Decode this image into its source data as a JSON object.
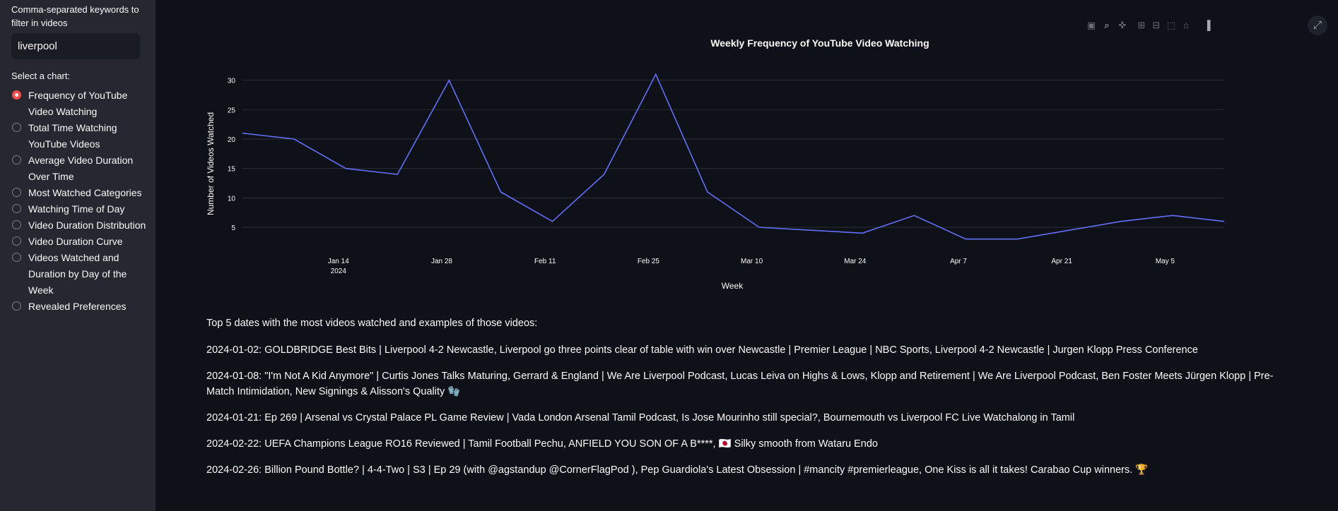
{
  "sidebar": {
    "keyword_label": "Comma-separated keywords to filter in videos",
    "keyword_value": "liverpool",
    "chart_label": "Select a chart:",
    "options": [
      {
        "label": "Frequency of YouTube Video Watching",
        "selected": true
      },
      {
        "label": "Total Time Watching YouTube Videos",
        "selected": false
      },
      {
        "label": "Average Video Duration Over Time",
        "selected": false
      },
      {
        "label": "Most Watched Categories",
        "selected": false
      },
      {
        "label": "Watching Time of Day",
        "selected": false
      },
      {
        "label": "Video Duration Distribution",
        "selected": false
      },
      {
        "label": "Video Duration Curve",
        "selected": false
      },
      {
        "label": "Videos Watched and Duration by Day of the Week",
        "selected": false
      },
      {
        "label": "Revealed Preferences",
        "selected": false
      }
    ]
  },
  "modebar": [
    "camera-icon",
    "zoom-icon",
    "pan-icon",
    "zoom-in-icon",
    "zoom-out-icon",
    "autoscale-icon",
    "reset-axes-icon",
    "plotly-logo-icon"
  ],
  "chart_data": {
    "type": "line",
    "title": "Weekly Frequency of YouTube Video Watching",
    "xlabel": "Week",
    "ylabel": "Number of Videos Watched",
    "x": [
      "2024-01-01",
      "2024-01-08",
      "2024-01-15",
      "2024-01-22",
      "2024-01-29",
      "2024-02-05",
      "2024-02-12",
      "2024-02-19",
      "2024-02-26",
      "2024-03-04",
      "2024-03-11",
      "2024-03-18",
      "2024-03-25",
      "2024-04-01",
      "2024-04-08",
      "2024-04-15",
      "2024-04-22",
      "2024-04-29",
      "2024-05-06",
      "2024-05-13"
    ],
    "values": [
      21,
      20,
      15,
      14,
      30,
      11,
      6,
      14,
      31,
      11,
      5,
      4.5,
      4,
      7,
      3,
      3,
      4.5,
      6,
      7,
      6
    ],
    "x_ticks": [
      {
        "date": "2024-01-14",
        "label": "Jan 14",
        "sub": "2024"
      },
      {
        "date": "2024-01-28",
        "label": "Jan 28",
        "sub": ""
      },
      {
        "date": "2024-02-11",
        "label": "Feb 11",
        "sub": ""
      },
      {
        "date": "2024-02-25",
        "label": "Feb 25",
        "sub": ""
      },
      {
        "date": "2024-03-10",
        "label": "Mar 10",
        "sub": ""
      },
      {
        "date": "2024-03-24",
        "label": "Mar 24",
        "sub": ""
      },
      {
        "date": "2024-04-07",
        "label": "Apr 7",
        "sub": ""
      },
      {
        "date": "2024-04-21",
        "label": "Apr 21",
        "sub": ""
      },
      {
        "date": "2024-05-05",
        "label": "May 5",
        "sub": ""
      }
    ],
    "y_ticks": [
      5,
      10,
      15,
      20,
      25,
      30
    ],
    "ylim": [
      2,
      32
    ],
    "xlim": [
      "2024-01-01",
      "2024-05-13"
    ],
    "line_color": "#636efa",
    "grid": true
  },
  "top5": {
    "heading": "Top 5 dates with the most videos watched and examples of those videos:",
    "items": [
      "2024-01-02: GOLDBRIDGE Best Bits | Liverpool 4-2 Newcastle, Liverpool go three points clear of table with win over Newcastle | Premier League | NBC Sports, Liverpool 4-2 Newcastle | Jurgen Klopp Press Conference",
      "2024-01-08: \"I'm Not A Kid Anymore\" | Curtis Jones Talks Maturing, Gerrard & England | We Are Liverpool Podcast, Lucas Leiva on Highs & Lows, Klopp and Retirement | We Are Liverpool Podcast, Ben Foster Meets Jürgen Klopp | Pre-Match Intimidation, New Signings & Alisson's Quality 🧤",
      "2024-01-21: Ep 269 | Arsenal vs Crystal Palace PL Game Review | Vada London Arsenal Tamil Podcast, Is Jose Mourinho still special?, Bournemouth vs Liverpool FC Live Watchalong in Tamil",
      "2024-02-22: UEFA Champions League RO16 Reviewed | Tamil Football Pechu, ANFIELD YOU SON OF A B****, 🇯🇵 Silky smooth from Wataru Endo",
      "2024-02-26: Billion Pound Bottle? | 4-4-Two | S3 | Ep 29 (with @agstandup @CornerFlagPod ), Pep Guardiola's Latest Obsession | #mancity #premierleague, One Kiss is all it takes! Carabao Cup winners. 🏆"
    ]
  }
}
